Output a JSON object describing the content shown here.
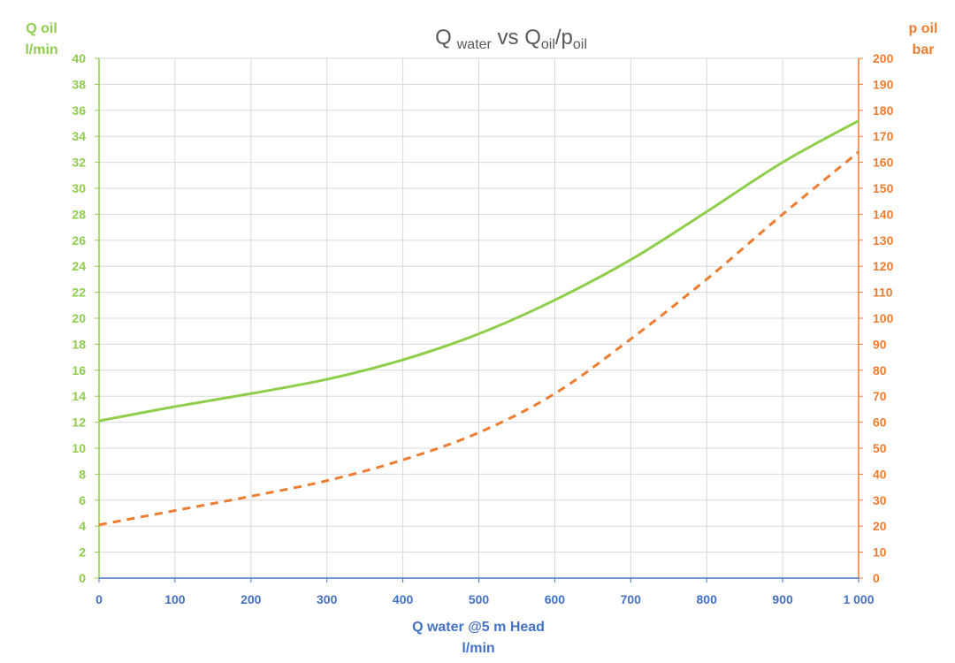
{
  "chart_data": {
    "type": "line",
    "title": {
      "part1": "Q",
      "part1_sub": "water",
      "part2": " vs Q",
      "part2_sub": "oil",
      "part3": "/p",
      "part3_sub": "oil"
    },
    "xlabel": [
      "Q water @5 m Head",
      "l/min"
    ],
    "ylabel_left": [
      "Q oil",
      "l/min"
    ],
    "ylabel_right": [
      "p oil",
      "bar"
    ],
    "xlim": [
      0,
      1000
    ],
    "ylim_left": [
      0,
      40
    ],
    "ylim_right": [
      0,
      200
    ],
    "x_ticks": [
      "0",
      "100",
      "200",
      "300",
      "400",
      "500",
      "600",
      "700",
      "800",
      "900",
      "1 000"
    ],
    "y_left_ticks": [
      "0",
      "2",
      "4",
      "6",
      "8",
      "10",
      "12",
      "14",
      "16",
      "18",
      "20",
      "22",
      "24",
      "26",
      "28",
      "30",
      "32",
      "34",
      "36",
      "38",
      "40"
    ],
    "y_right_ticks": [
      "0",
      "10",
      "20",
      "30",
      "40",
      "50",
      "60",
      "70",
      "80",
      "90",
      "100",
      "110",
      "120",
      "130",
      "140",
      "150",
      "160",
      "170",
      "180",
      "190",
      "200"
    ],
    "grid": true,
    "colors": {
      "q_oil": "#8fce4a",
      "p_oil": "#ed7d31",
      "x_axis": "#4472c4",
      "grid": "#d9d9d9",
      "title": "#595959"
    },
    "series": [
      {
        "axis": "left",
        "style": "solid",
        "x": [
          0,
          100,
          200,
          300,
          400,
          500,
          600,
          700,
          800,
          900,
          1000
        ],
        "y": [
          12.1,
          13.2,
          14.2,
          15.3,
          16.8,
          18.8,
          21.4,
          24.5,
          28.2,
          32.0,
          35.2
        ]
      },
      {
        "axis": "right",
        "style": "dashed",
        "x": [
          0,
          100,
          200,
          300,
          400,
          500,
          600,
          700,
          800,
          900,
          1000
        ],
        "y": [
          20.5,
          26,
          31.5,
          37.5,
          45.5,
          56,
          71,
          92,
          115,
          140,
          164
        ]
      }
    ]
  }
}
